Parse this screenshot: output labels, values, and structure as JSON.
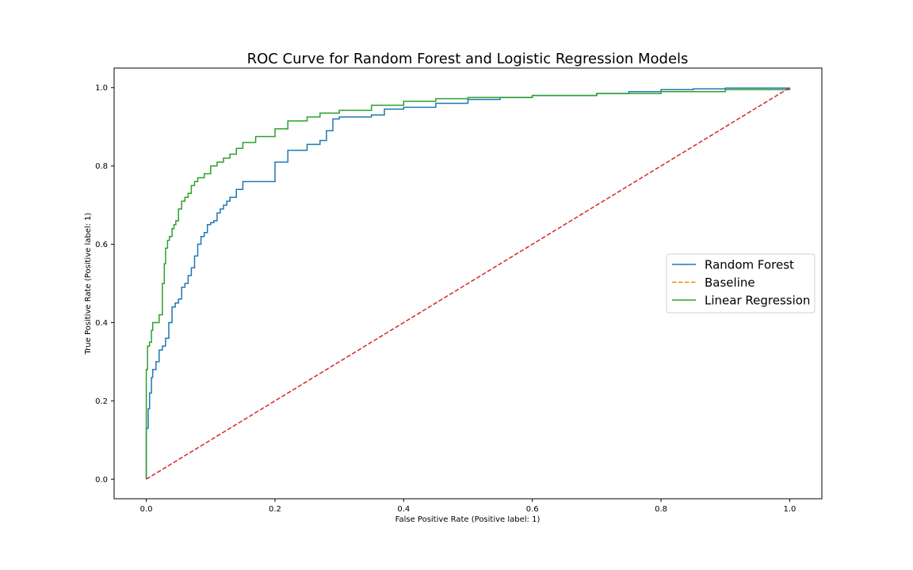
{
  "chart_data": {
    "type": "line",
    "title": "ROC Curve for Random Forest and Logistic Regression Models",
    "xlabel": "False Positive Rate (Positive label: 1)",
    "ylabel": "True Positive Rate (Positive label: 1)",
    "xlim": [
      -0.05,
      1.05
    ],
    "ylim": [
      -0.05,
      1.05
    ],
    "xticks": [
      0.0,
      0.2,
      0.4,
      0.6,
      0.8,
      1.0
    ],
    "yticks": [
      0.0,
      0.2,
      0.4,
      0.6,
      0.8,
      1.0
    ],
    "xtick_labels": [
      "0.0",
      "0.2",
      "0.4",
      "0.6",
      "0.8",
      "1.0"
    ],
    "ytick_labels": [
      "0.0",
      "0.2",
      "0.4",
      "0.6",
      "0.8",
      "1.0"
    ],
    "grid": false,
    "legend_position": "center-right",
    "series": [
      {
        "name": "Random Forest",
        "color": "#1f77b4",
        "style": "solid",
        "x": [
          0.0,
          0.0,
          0.003,
          0.005,
          0.008,
          0.01,
          0.015,
          0.02,
          0.025,
          0.03,
          0.035,
          0.04,
          0.045,
          0.05,
          0.055,
          0.06,
          0.065,
          0.07,
          0.075,
          0.08,
          0.085,
          0.09,
          0.095,
          0.1,
          0.105,
          0.11,
          0.115,
          0.12,
          0.125,
          0.13,
          0.14,
          0.15,
          0.2,
          0.22,
          0.25,
          0.27,
          0.28,
          0.29,
          0.3,
          0.35,
          0.37,
          0.4,
          0.45,
          0.5,
          0.55,
          0.6,
          0.7,
          0.75,
          0.8,
          0.85,
          0.9,
          1.0
        ],
        "y": [
          0.0,
          0.13,
          0.18,
          0.22,
          0.26,
          0.28,
          0.3,
          0.33,
          0.34,
          0.36,
          0.4,
          0.44,
          0.45,
          0.46,
          0.49,
          0.5,
          0.52,
          0.54,
          0.57,
          0.6,
          0.62,
          0.63,
          0.65,
          0.655,
          0.66,
          0.68,
          0.69,
          0.7,
          0.71,
          0.72,
          0.74,
          0.76,
          0.81,
          0.84,
          0.855,
          0.865,
          0.89,
          0.92,
          0.925,
          0.93,
          0.945,
          0.95,
          0.96,
          0.97,
          0.975,
          0.98,
          0.985,
          0.99,
          0.995,
          0.997,
          0.999,
          1.0
        ]
      },
      {
        "name": "Baseline",
        "color": "#ff7f0e",
        "style": "dashed",
        "x": [
          0.0,
          1.0
        ],
        "y": [
          0.0,
          1.0
        ]
      },
      {
        "name": "Linear Regression",
        "color": "#2ca02c",
        "style": "solid",
        "x": [
          0.0,
          0.0,
          0.002,
          0.005,
          0.008,
          0.01,
          0.012,
          0.015,
          0.02,
          0.025,
          0.028,
          0.03,
          0.033,
          0.036,
          0.04,
          0.043,
          0.046,
          0.05,
          0.055,
          0.06,
          0.065,
          0.07,
          0.075,
          0.08,
          0.09,
          0.1,
          0.11,
          0.12,
          0.13,
          0.14,
          0.15,
          0.17,
          0.2,
          0.22,
          0.25,
          0.27,
          0.3,
          0.35,
          0.4,
          0.45,
          0.5,
          0.6,
          0.7,
          0.8,
          0.9,
          1.0
        ],
        "y": [
          0.0,
          0.28,
          0.34,
          0.35,
          0.38,
          0.4,
          0.4,
          0.4,
          0.42,
          0.5,
          0.55,
          0.59,
          0.61,
          0.62,
          0.64,
          0.65,
          0.66,
          0.69,
          0.71,
          0.72,
          0.73,
          0.75,
          0.76,
          0.77,
          0.78,
          0.8,
          0.81,
          0.82,
          0.83,
          0.845,
          0.86,
          0.875,
          0.895,
          0.915,
          0.925,
          0.935,
          0.942,
          0.955,
          0.965,
          0.972,
          0.975,
          0.98,
          0.985,
          0.99,
          0.995,
          1.0
        ]
      }
    ]
  }
}
